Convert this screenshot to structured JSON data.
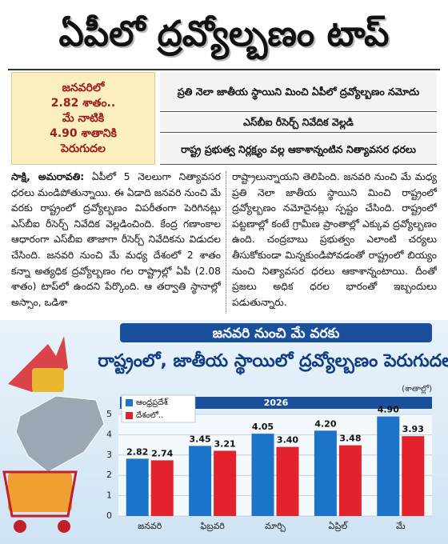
{
  "headline": "ఏపీలో ద్రవ్యోల్బణం టాప్",
  "sidebar": [
    "జనవరిలో",
    "2.82 శాతం..",
    "మే నాటికి",
    "4.90 శాతానికి",
    "పెరుగుదల"
  ],
  "subheads": [
    "ప్రతి నెలా జాతీయ స్థాయిని మించి ఏపీలో ద్రవ్యోల్బణం నమోదు",
    "ఎస్‌బీఐ రీసెర్చ్ నివేదిక వెల్లడి",
    "రాష్ట్ర ప్రభుత్వ నిర్లక్ష్యం వల్ల ఆకాశాన్నంటిన నిత్యావసర ధరలు"
  ],
  "body": {
    "dateline": "సాక్షి, అమరావతి:",
    "columns": [
      "ఏపీలో 5 నెలలుగా నిత్యావసర ధరలు మండిపోతున్నాయి. ఈ ఏడాది జనవరి నుంచి మే వరకు రాష్ట్రంలో ద్రవ్యోల్బణం విపరీతంగా పెరిగినట్లు ఎస్‌బీఐ రీసెర్చ్ నివేదిక వెల్లడించింది. కేంద్ర గణాంకాల ఆధారంగా ఎస్‌బీఐ తాజాగా రీసెర్చ్ నివేదికను విడుదల చేసింది. జనవరి నుంచి మే మధ్య దేశంలో 2 శాతం కన్నా అత్యధిక ద్రవ్యోల్బణం గల రాష్ట్రాల్లో ఏపీ (2.08 శాతం) టాప్‌లో ఉందని పేర్కొంది. ఆ తర్వాతి స్థానాల్లో అస్సాం, ఒడిశా",
      "రాష్ట్రాలున్నాయని తెలిపింది. జనవరి నుంచి మే మధ్య ప్రతి నెలా జాతీయ స్థాయిని మించి రాష్ట్రంలో ద్రవ్యోల్బణం నమోదైనట్లు స్పష్టం చేసింది. రాష్ట్రంలో పట్టణాల్లో కంటే గ్రామీణ ప్రాంతాల్లో ఎక్కువ ద్రవ్యోల్బణం ఉంది. చంద్రబాబు ప్రభుత్వం ఎలాంటి చర్యలు తీసుకోకుండా మిన్నకుండిపోవడంతో రాష్ట్రంలో బియ్యం నుంచి నిత్యావసర ధరలు ఆకాశాన్నంటాయి. దీంతో ప్రజలు అధిక ధరల భారంతో ఇబ్బందులు పడుతున్నారు."
    ]
  },
  "chart_data": {
    "type": "bar",
    "title": "జనవరి నుంచి మే వరకు",
    "subtitle": "రాష్ట్రంలో, జాతీయ స్థాయిలో ద్రవ్యోల్బణం పెరుగుదల",
    "unit_note": "(శాతాల్లో)",
    "year": "2026",
    "categories": [
      "జనవరి",
      "ఫిబ్రవరి",
      "మార్చి",
      "ఏప్రిల్",
      "మే"
    ],
    "series": [
      {
        "name": "ఆంధ్రప్రదేశ్",
        "color": "#1b74c9",
        "values": [
          2.82,
          3.45,
          4.05,
          4.2,
          4.9
        ],
        "value_labels": [
          "2.82",
          "3.45",
          "4.05",
          "4.20",
          "4.90"
        ]
      },
      {
        "name": "దేశంలో..",
        "color": "#e3222b",
        "values": [
          2.74,
          3.21,
          3.4,
          3.48,
          3.93
        ],
        "value_labels": [
          "2.74",
          "3.21",
          "3.40",
          "3.48",
          "3.93"
        ]
      }
    ],
    "ylim": [
      0,
      5
    ],
    "yticks": [
      0,
      1,
      2,
      3,
      4,
      5
    ],
    "grid": true,
    "legend": "top-left"
  }
}
